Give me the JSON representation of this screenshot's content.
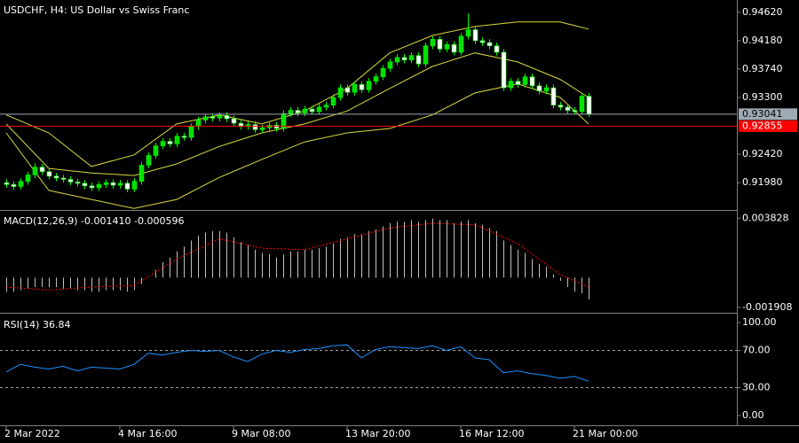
{
  "chart_data": [
    {
      "type": "candlestick",
      "title": "USDCHF, H4:  US Dollar vs Swiss Franc",
      "categories": [
        "2 Mar 2022",
        null,
        null,
        null,
        null,
        null,
        null,
        null,
        null,
        null,
        null,
        null,
        null,
        null,
        null,
        null,
        "4 Mar 16:00",
        null,
        null,
        null,
        null,
        null,
        null,
        null,
        null,
        null,
        null,
        null,
        null,
        null,
        null,
        null,
        "9 Mar 08:00",
        null,
        null,
        null,
        null,
        null,
        null,
        null,
        null,
        null,
        null,
        null,
        null,
        null,
        null,
        null,
        "13 Mar 20:00",
        null,
        null,
        null,
        null,
        null,
        null,
        null,
        null,
        null,
        null,
        null,
        null,
        null,
        null,
        null,
        "16 Mar 12:00",
        null,
        null,
        null,
        null,
        null,
        null,
        null,
        null,
        null,
        null,
        null,
        null,
        null,
        null,
        null,
        "21 Mar 00:00",
        null,
        null
      ],
      "open": [
        0.9198,
        0.9195,
        0.9192,
        0.92,
        0.921,
        0.9222,
        0.9215,
        0.9208,
        0.9205,
        0.9203,
        0.9199,
        0.9197,
        0.9193,
        0.919,
        0.9195,
        0.9198,
        0.9194,
        0.9197,
        0.9188,
        0.92,
        0.9225,
        0.924,
        0.9255,
        0.9262,
        0.9258,
        0.927,
        0.9268,
        0.9285,
        0.9295,
        0.93,
        0.9298,
        0.9302,
        0.9297,
        0.929,
        0.9285,
        0.9288,
        0.928,
        0.9283,
        0.9287,
        0.9282,
        0.9305,
        0.931,
        0.9306,
        0.9312,
        0.9308,
        0.9315,
        0.9318,
        0.933,
        0.9345,
        0.9338,
        0.935,
        0.9342,
        0.9355,
        0.9362,
        0.9375,
        0.9385,
        0.9392,
        0.9388,
        0.9395,
        0.9382,
        0.941,
        0.942,
        0.9405,
        0.9412,
        0.94,
        0.9425,
        0.9435,
        0.9418,
        0.9415,
        0.941,
        0.94,
        0.9345,
        0.9355,
        0.935,
        0.9362,
        0.9348,
        0.934,
        0.9345,
        0.9318,
        0.9315,
        0.931,
        0.9308,
        0.9332
      ],
      "high": [
        0.9203,
        0.92,
        0.9205,
        0.9215,
        0.9228,
        0.9227,
        0.922,
        0.9213,
        0.921,
        0.9208,
        0.9204,
        0.9202,
        0.9198,
        0.92,
        0.9203,
        0.9203,
        0.9202,
        0.9202,
        0.9205,
        0.923,
        0.9245,
        0.926,
        0.9267,
        0.9267,
        0.9275,
        0.9275,
        0.929,
        0.93,
        0.9305,
        0.9305,
        0.9307,
        0.9307,
        0.9302,
        0.9295,
        0.9293,
        0.9293,
        0.9288,
        0.9292,
        0.9292,
        0.931,
        0.9315,
        0.9315,
        0.9317,
        0.9317,
        0.932,
        0.9323,
        0.9335,
        0.935,
        0.935,
        0.9355,
        0.9355,
        0.936,
        0.9367,
        0.938,
        0.939,
        0.9397,
        0.9397,
        0.94,
        0.94,
        0.9415,
        0.9425,
        0.9425,
        0.9417,
        0.9417,
        0.943,
        0.946,
        0.944,
        0.9423,
        0.942,
        0.9415,
        0.9405,
        0.936,
        0.936,
        0.9367,
        0.9367,
        0.9353,
        0.935,
        0.935,
        0.9323,
        0.932,
        0.9315,
        0.9337,
        0.9337
      ],
      "low": [
        0.919,
        0.9187,
        0.9187,
        0.9195,
        0.9205,
        0.921,
        0.9203,
        0.92,
        0.9198,
        0.9194,
        0.9192,
        0.9188,
        0.9185,
        0.9185,
        0.919,
        0.9189,
        0.9189,
        0.9183,
        0.9183,
        0.9195,
        0.922,
        0.9235,
        0.925,
        0.9253,
        0.9253,
        0.9263,
        0.9263,
        0.928,
        0.929,
        0.9293,
        0.9293,
        0.9292,
        0.9285,
        0.928,
        0.928,
        0.9275,
        0.9275,
        0.9278,
        0.9277,
        0.9277,
        0.93,
        0.9301,
        0.9301,
        0.9303,
        0.9303,
        0.931,
        0.9313,
        0.9325,
        0.9333,
        0.9333,
        0.9337,
        0.9337,
        0.935,
        0.9357,
        0.937,
        0.938,
        0.9383,
        0.9383,
        0.9377,
        0.9377,
        0.9405,
        0.94,
        0.94,
        0.9395,
        0.9395,
        0.942,
        0.9413,
        0.941,
        0.9405,
        0.9395,
        0.934,
        0.934,
        0.9345,
        0.9345,
        0.9343,
        0.9335,
        0.9335,
        0.9313,
        0.931,
        0.9305,
        0.9303,
        0.9303,
        0.93
      ],
      "close": [
        0.9195,
        0.9192,
        0.92,
        0.921,
        0.9222,
        0.9215,
        0.9208,
        0.9205,
        0.9203,
        0.9199,
        0.9197,
        0.9193,
        0.919,
        0.9195,
        0.9198,
        0.9194,
        0.9197,
        0.9188,
        0.92,
        0.9225,
        0.924,
        0.9255,
        0.9262,
        0.9258,
        0.927,
        0.9268,
        0.9285,
        0.9295,
        0.93,
        0.9298,
        0.9302,
        0.9297,
        0.929,
        0.9285,
        0.9288,
        0.928,
        0.9283,
        0.9287,
        0.9282,
        0.9305,
        0.931,
        0.9306,
        0.9312,
        0.9308,
        0.9315,
        0.9318,
        0.933,
        0.9345,
        0.9338,
        0.935,
        0.9342,
        0.9355,
        0.9362,
        0.9375,
        0.9385,
        0.9392,
        0.9388,
        0.9395,
        0.9382,
        0.941,
        0.942,
        0.9405,
        0.9412,
        0.94,
        0.9425,
        0.9435,
        0.9418,
        0.9415,
        0.941,
        0.94,
        0.9345,
        0.9355,
        0.935,
        0.9362,
        0.9348,
        0.934,
        0.9345,
        0.9318,
        0.9315,
        0.931,
        0.9308,
        0.9332,
        0.93041
      ],
      "up_color": "#00e000",
      "down_color": "#ffffff",
      "wick_color": "#00ff00",
      "bands": {
        "x": [
          0,
          6,
          12,
          18,
          24,
          30,
          36,
          42,
          48,
          54,
          60,
          66,
          72,
          78,
          82
        ],
        "upper": [
          0.9303,
          0.9275,
          0.9223,
          0.9241,
          0.9289,
          0.9303,
          0.9289,
          0.9309,
          0.9344,
          0.9399,
          0.9426,
          0.944,
          0.9447,
          0.9447,
          0.9436
        ],
        "middle": [
          0.9289,
          0.922,
          0.9213,
          0.9209,
          0.9227,
          0.9254,
          0.9275,
          0.9289,
          0.9309,
          0.9344,
          0.9378,
          0.9399,
          0.9385,
          0.9358,
          0.933
        ],
        "lower": [
          0.9275,
          0.9186,
          0.9172,
          0.9158,
          0.9172,
          0.9206,
          0.9234,
          0.9261,
          0.9275,
          0.9282,
          0.9303,
          0.9337,
          0.9351,
          0.933,
          0.9289
        ],
        "color": "#d8d840"
      },
      "price_lines": [
        {
          "value": 0.93041,
          "color": "#a0aab4",
          "text_color": "#000000"
        },
        {
          "value": 0.92855,
          "color": "#ff0000",
          "text_color": "#ffffff"
        }
      ],
      "ylim": [
        0.9157,
        0.9481
      ],
      "yticks": [
        {
          "value": 0.9462,
          "label": "0.94620"
        },
        {
          "value": 0.9418,
          "label": "0.94180"
        },
        {
          "value": 0.9374,
          "label": "0.93740"
        },
        {
          "value": 0.933,
          "label": "0.93300"
        },
        {
          "value": 0.9242,
          "label": "0.92420"
        },
        {
          "value": 0.9198,
          "label": "0.91980"
        }
      ]
    },
    {
      "type": "macd",
      "title": "MACD(12,26,9) -0.001410 -0.000596",
      "values": [
        -0.0009,
        -0.0009,
        -0.0008,
        -0.0007,
        -0.0006,
        -0.0006,
        -0.0006,
        -0.0006,
        -0.0007,
        -0.0007,
        -0.0008,
        -0.0008,
        -0.0009,
        -0.0009,
        -0.0008,
        -0.0008,
        -0.0008,
        -0.0009,
        -0.0008,
        -0.0004,
        0.0,
        0.0005,
        0.001,
        0.0013,
        0.0017,
        0.002,
        0.0024,
        0.0027,
        0.0029,
        0.003,
        0.003,
        0.0029,
        0.0026,
        0.0023,
        0.0021,
        0.0018,
        0.0016,
        0.0015,
        0.0013,
        0.0015,
        0.0017,
        0.0017,
        0.0018,
        0.0018,
        0.0019,
        0.002,
        0.0022,
        0.0025,
        0.0026,
        0.0028,
        0.0028,
        0.003,
        0.0031,
        0.0033,
        0.0035,
        0.0036,
        0.0036,
        0.0037,
        0.0036,
        0.0037,
        0.0038,
        0.0037,
        0.0037,
        0.0035,
        0.0036,
        0.0037,
        0.0035,
        0.0034,
        0.0032,
        0.003,
        0.0024,
        0.0021,
        0.0018,
        0.0016,
        0.0012,
        0.0009,
        0.0007,
        0.0002,
        -0.0002,
        -0.0006,
        -0.0009,
        -0.001,
        -0.00141
      ],
      "color": "#c0c0c0",
      "signal": {
        "x": [
          0,
          6,
          12,
          18,
          24,
          30,
          36,
          42,
          48,
          54,
          60,
          66,
          72,
          78,
          82
        ],
        "values": [
          -0.0006,
          -0.0008,
          -0.0006,
          -0.0005,
          0.0012,
          0.0025,
          0.0019,
          0.0018,
          0.0025,
          0.0032,
          0.0035,
          0.0034,
          0.0022,
          0.0002,
          -0.000596
        ],
        "color": "#ff0000"
      },
      "ylim": [
        -0.0022,
        0.0043
      ],
      "yticks": [
        0.003828,
        -0.001908
      ]
    },
    {
      "type": "line",
      "title": "RSI(14) 36.84",
      "x": [
        0,
        2,
        4,
        6,
        8,
        10,
        12,
        14,
        16,
        18,
        20,
        22,
        24,
        26,
        28,
        30,
        32,
        34,
        36,
        38,
        40,
        42,
        44,
        46,
        48,
        50,
        52,
        54,
        56,
        58,
        60,
        62,
        64,
        66,
        68,
        70,
        72,
        74,
        76,
        78,
        80,
        82
      ],
      "values": [
        47,
        55,
        52,
        50,
        53,
        48,
        52,
        51,
        50,
        55,
        67,
        65,
        68,
        70,
        69,
        70,
        63,
        58,
        66,
        70,
        68,
        71,
        72,
        75,
        76,
        62,
        71,
        74,
        73,
        72,
        75,
        70,
        74,
        62,
        60,
        46,
        48,
        45,
        43,
        40,
        42,
        36.84
      ],
      "color": "#1e90ff",
      "levels": [
        70,
        30
      ],
      "ylim": [
        -10.5,
        108.6
      ],
      "yticks": [
        {
          "value": 100,
          "label": "100.00"
        },
        {
          "value": 70,
          "label": "70.00"
        },
        {
          "value": 30,
          "label": "30.00"
        },
        {
          "value": 0,
          "label": "0.00"
        }
      ]
    }
  ]
}
